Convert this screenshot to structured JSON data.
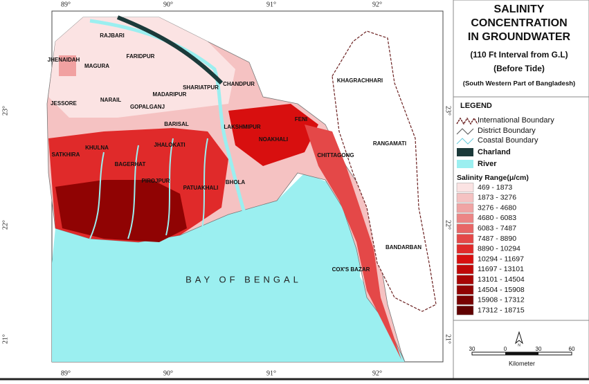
{
  "title": [
    "SALINITY",
    "CONCENTRATION",
    "IN GROUNDWATER"
  ],
  "subtitle": [
    "(110 Ft Interval from G.L)",
    "(Before Tide)",
    "(South Western Part of Bangladesh)"
  ],
  "map": {
    "sea_label": "BAY OF BENGAL",
    "longitudes": [
      "89°",
      "90°",
      "91°",
      "92°"
    ],
    "latitudes": [
      "23°",
      "22°",
      "21°"
    ],
    "districts": [
      "RAJBARI",
      "JHENAIDAH",
      "MAGURA",
      "FARIDPUR",
      "KHAGRACHHARI",
      "CHANDPUR",
      "SHARIATPUR",
      "MADARIPUR",
      "JESSORE",
      "NARAIL",
      "GOPALGANJ",
      "BARISAL",
      "LAKSHMIPUR",
      "FENI",
      "NOAKHALI",
      "RANGAMATI",
      "SATKHIRA",
      "KHULNA",
      "JHALOKATI",
      "CHITTAGONG",
      "BAGERHAT",
      "PIROJPUR",
      "PATUAKHALI",
      "BHOLA",
      "BANDARBAN",
      "COX'S BAZAR"
    ]
  },
  "legend": {
    "title": "LEGEND",
    "items": [
      "International Boundary",
      "District Boundary",
      "Coastal Boundary",
      "Charland",
      "River"
    ],
    "salinity_title": "Salinity Range(μ/cm)",
    "ranges": [
      {
        "label": "469 - 1873",
        "color": "#fbe3e3"
      },
      {
        "label": "1873 - 3276",
        "color": "#f5c2c2"
      },
      {
        "label": "3276 - 4680",
        "color": "#f0a4a4"
      },
      {
        "label": "4680 - 6083",
        "color": "#ec8585"
      },
      {
        "label": "6083 - 7487",
        "color": "#e86666"
      },
      {
        "label": "7487 - 8890",
        "color": "#e44848"
      },
      {
        "label": "8890 - 10294",
        "color": "#e02a2a"
      },
      {
        "label": "10294 - 11697",
        "color": "#d80f0f"
      },
      {
        "label": "11697 - 13101",
        "color": "#c00808"
      },
      {
        "label": "13101 - 14504",
        "color": "#a80505"
      },
      {
        "label": "14504 - 15908",
        "color": "#900303"
      },
      {
        "label": "15908 - 17312",
        "color": "#780202"
      },
      {
        "label": "17312 - 18715",
        "color": "#600101"
      }
    ]
  },
  "scale": {
    "ticks": [
      "30",
      "0",
      "30",
      "60"
    ],
    "unit": "Kilometer",
    "north": "N"
  }
}
